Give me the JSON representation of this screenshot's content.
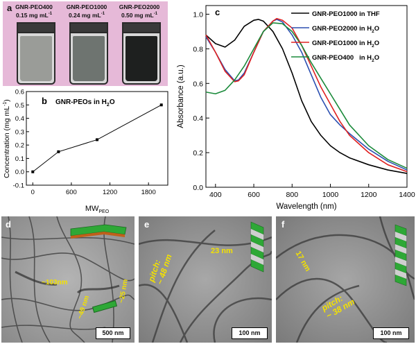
{
  "panel_a": {
    "label": "a",
    "vials": [
      {
        "name": "GNR-PEO400",
        "conc": "0.15 mg mL",
        "sup": "-1",
        "fill": "#9a9c98"
      },
      {
        "name": "GNR-PEO1000",
        "conc": "0.24 mg mL",
        "sup": "-1",
        "fill": "#6e7470"
      },
      {
        "name": "GNR-PEO2000",
        "conc": "0.50 mg mL",
        "sup": "-1",
        "fill": "#1e201f"
      }
    ]
  },
  "panel_b": {
    "label": "b",
    "title_main": "GNR-PEOs in H",
    "title_sub": "2",
    "title_end": "O",
    "ylabel_main": "Concentration (mg mL",
    "ylabel_sup": "-1",
    "ylabel_end": ")",
    "xlabel_main": "MW",
    "xlabel_sub": "PEO",
    "x_ticks": [
      "0",
      "600",
      "1200",
      "1800"
    ],
    "y_ticks": [
      "-0.1",
      "0.0",
      "0.1",
      "0.2",
      "0.3",
      "0.4",
      "0.5",
      "0.6"
    ]
  },
  "panel_c": {
    "label": "c",
    "xlabel": "Wavelength (nm)",
    "ylabel": "Absorbance (a.u.)",
    "x_ticks": [
      "400",
      "600",
      "800",
      "1000",
      "1200",
      "1400"
    ],
    "y_ticks": [
      "0.0",
      "0.2",
      "0.4",
      "0.6",
      "0.8",
      "1.0"
    ],
    "legend": [
      {
        "main": "GNR-PEO1000 in THF",
        "sub": "",
        "end": "",
        "color": "#000000"
      },
      {
        "main": "GNR-PEO2000 in H",
        "sub": "2",
        "end": "O",
        "color": "#2b4fb0"
      },
      {
        "main": "GNR-PEO1000 in H",
        "sub": "2",
        "end": "O",
        "color": "#e02020"
      },
      {
        "main": "GNR-PEO400   in H",
        "sub": "2",
        "end": "O",
        "color": "#1a8a3a"
      }
    ]
  },
  "panel_d": {
    "label": "d",
    "ann1": "~103nm",
    "ann2": "~49 nm",
    "ann3": "~25 nm",
    "scale": "500 nm"
  },
  "panel_e": {
    "label": "e",
    "pitch": "pitch:",
    "pitch_val": "~ 48 nm",
    "ann": "23 nm",
    "scale": "100 nm"
  },
  "panel_f": {
    "label": "f",
    "ann": "17 nm",
    "pitch": "pitch:",
    "pitch_val": "~ 38 nm",
    "scale": "100 nm"
  },
  "chart_data": [
    {
      "type": "line",
      "ylim": [
        -0.1,
        0.6
      ],
      "xlim": [
        -100,
        2100
      ],
      "series": [
        {
          "x": [
            0,
            400,
            1000,
            2000
          ],
          "y": [
            0.0,
            0.15,
            0.24,
            0.5
          ]
        }
      ]
    },
    {
      "type": "line",
      "xlim": [
        350,
        1400
      ],
      "ylim": [
        0.0,
        1.05
      ],
      "series": [
        {
          "name": "GNR-PEO1000 in THF",
          "color": "#000000",
          "x": [
            350,
            400,
            450,
            500,
            550,
            600,
            625,
            650,
            700,
            750,
            800,
            850,
            900,
            950,
            1000,
            1050,
            1100,
            1200,
            1300,
            1400
          ],
          "y": [
            0.88,
            0.83,
            0.81,
            0.85,
            0.93,
            0.965,
            0.97,
            0.96,
            0.9,
            0.8,
            0.66,
            0.5,
            0.38,
            0.3,
            0.24,
            0.2,
            0.17,
            0.13,
            0.1,
            0.08
          ]
        },
        {
          "name": "GNR-PEO2000 in H2O",
          "color": "#2b4fb0",
          "x": [
            350,
            400,
            450,
            500,
            520,
            550,
            600,
            650,
            700,
            720,
            750,
            800,
            850,
            900,
            950,
            1000,
            1050,
            1100,
            1200,
            1300,
            1400
          ],
          "y": [
            0.87,
            0.78,
            0.68,
            0.615,
            0.62,
            0.66,
            0.78,
            0.9,
            0.96,
            0.97,
            0.955,
            0.88,
            0.78,
            0.65,
            0.52,
            0.42,
            0.36,
            0.31,
            0.22,
            0.15,
            0.1
          ]
        },
        {
          "name": "GNR-PEO1000 in H2O",
          "color": "#e02020",
          "x": [
            350,
            400,
            450,
            500,
            520,
            550,
            600,
            650,
            700,
            720,
            750,
            800,
            850,
            900,
            950,
            1000,
            1050,
            1100,
            1200,
            1300,
            1400
          ],
          "y": [
            0.88,
            0.78,
            0.67,
            0.61,
            0.615,
            0.65,
            0.78,
            0.9,
            0.96,
            0.975,
            0.965,
            0.92,
            0.82,
            0.7,
            0.58,
            0.48,
            0.38,
            0.3,
            0.2,
            0.13,
            0.09
          ]
        },
        {
          "name": "GNR-PEO400 in H2O",
          "color": "#1a8a3a",
          "x": [
            350,
            400,
            450,
            500,
            550,
            600,
            650,
            700,
            750,
            800,
            850,
            900,
            950,
            1000,
            1050,
            1100,
            1200,
            1300,
            1400
          ],
          "y": [
            0.55,
            0.54,
            0.56,
            0.62,
            0.7,
            0.8,
            0.9,
            0.95,
            0.945,
            0.9,
            0.82,
            0.72,
            0.63,
            0.54,
            0.45,
            0.36,
            0.24,
            0.16,
            0.11
          ]
        }
      ]
    }
  ]
}
